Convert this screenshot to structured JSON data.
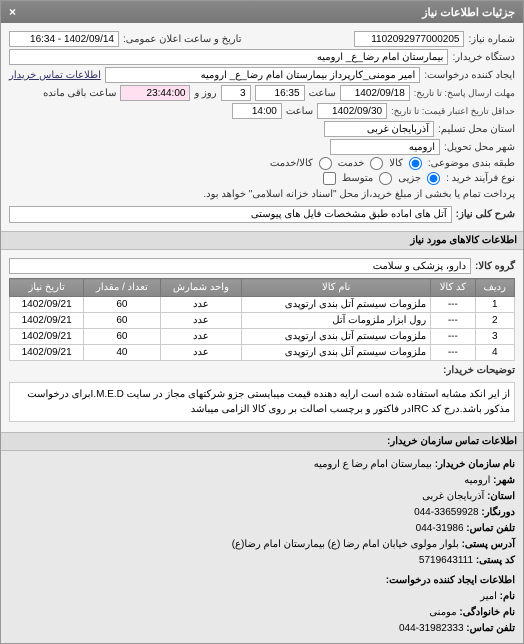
{
  "header": {
    "title": "جزئیات اطلاعات نیاز",
    "close": "×"
  },
  "form": {
    "req_no_label": "شماره نیاز:",
    "req_no": "1102092977000205",
    "pub_datetime_label": "تاریخ و ساعت اعلان عمومی:",
    "pub_datetime": "1402/09/14 - 16:34",
    "buyer_org_label": "دستگاه خریدار:",
    "buyer_org": "بیمارستان امام رضا_ع_ ارومیه",
    "creator_label": "ایجاد کننده درخواست:",
    "creator": "امیر مومنی_کارپرداز بیمارستان امام رضا_ع_ ارومیه",
    "contact_link": "اطلاعات تماس خریدار",
    "deadline_label": "مهلت ارسال پاسخ: تا تاریخ:",
    "deadline_date": "1402/09/18",
    "time_label": "ساعت",
    "deadline_time": "16:35",
    "days_label": "روز و",
    "days": "3",
    "remain_time": "23:44:00",
    "remain_label": "ساعت باقی مانده",
    "validity_label": "حداقل تاریخ اعتبار قیمت: تا تاریخ:",
    "validity_date": "1402/09/30",
    "validity_time": "14:00",
    "province_label": "استان محل تسلیم:",
    "province": "آذربایجان غربی",
    "city_label": "شهر محل تحویل:",
    "city": "ارومیه",
    "cat_label": "طبقه بندی موضوعی:",
    "opt_goods": "کالا",
    "opt_service": "خدمت",
    "opt_goods_service": "کالا/خدمت",
    "process_label": "نوع فرآیند خرید :",
    "opt_small": "جزیی",
    "opt_medium": "متوسط",
    "process_note": "پرداخت تمام یا بخشی از مبلغ خرید،از محل \"اسناد خزانه اسلامی\" خواهد بود.",
    "desc_label": "شرح کلی نیاز:",
    "desc": "آتل های اماده طبق مشخصات فایل های پیوستی"
  },
  "items_section": "اطلاعات کالاهای مورد نیاز",
  "group_label": "گروه کالا:",
  "group_value": "دارو، پزشکی و سلامت",
  "table": {
    "headers": [
      "ردیف",
      "کد کالا",
      "نام کالا",
      "واحد شمارش",
      "تعداد / مقدار",
      "تاریخ نیاز"
    ],
    "rows": [
      [
        "1",
        "---",
        "ملزومات سیستم آتل بندی ارتوپدی",
        "عدد",
        "60",
        "1402/09/21"
      ],
      [
        "2",
        "---",
        "رول ابزار ملزومات آتل",
        "عدد",
        "60",
        "1402/09/21"
      ],
      [
        "3",
        "---",
        "ملزومات سیستم آتل بندی ارتوپدی",
        "عدد",
        "60",
        "1402/09/21"
      ],
      [
        "4",
        "---",
        "ملزومات سیستم آتل بندی ارتوپدی",
        "عدد",
        "40",
        "1402/09/21"
      ]
    ]
  },
  "notes_label": "توضیحات خریدار:",
  "notes": "از ایر انکد مشابه استفاده شده است ارایه دهنده قیمت میبایستی جزو شرکتهای مجاز در سایت I.M.E.Dبرای درخواست مذکور باشد.درج کد IRCدر فاکتور و برچسب اصالت بر روی کالا الزامی میباشد",
  "contact_section": "اطلاعات تماس سازمان خریدار:",
  "contact": {
    "org_label": "نام سازمان خریدار:",
    "org": "بیمارستان امام رضا ع ارومیه",
    "city_label": "شهر:",
    "city": "ارومیه",
    "province_label": "استان:",
    "province": "آذربایجان غربی",
    "fax_label": "دورنگار:",
    "fax": "33659928-044",
    "phone_label": "تلفن تماس:",
    "phone": "31986-044",
    "address_label": "آدرس پستی:",
    "address": "بلوار مولوی خیابان امام رضا (ع) بیمارستان امام رضا(ع)",
    "postal_label": "کد پستی:",
    "postal": "5719643111",
    "creator_section": "اطلاعات ایجاد کننده درخواست:",
    "name_label": "نام:",
    "name": "امیر",
    "lname_label": "نام خانوادگی:",
    "lname": "مومنی",
    "cphone_label": "تلفن تماس:",
    "cphone": "31982333-044"
  }
}
